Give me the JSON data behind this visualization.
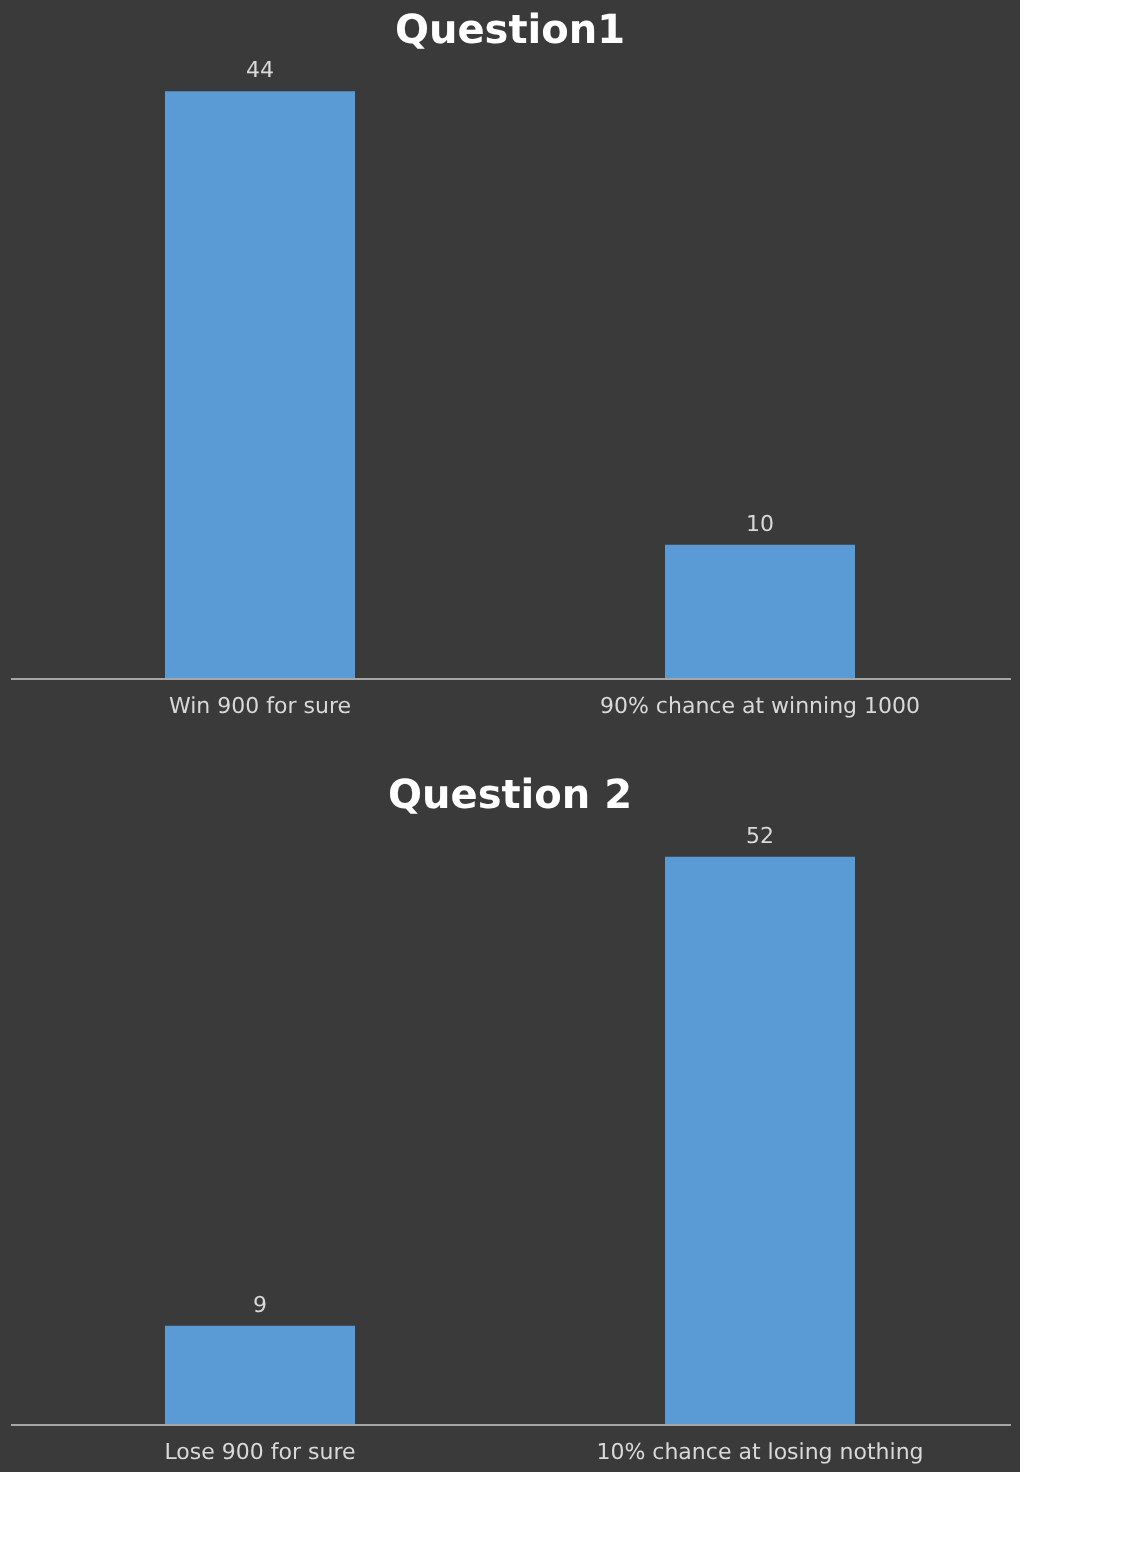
{
  "chart_data": [
    {
      "type": "bar",
      "title": "Question1",
      "categories": [
        "Win 900 for sure",
        "90% chance at winning 1000"
      ],
      "values": [
        44,
        10
      ],
      "color": "#5b9bd5",
      "data_labels": true
    },
    {
      "type": "bar",
      "title": "Question 2",
      "categories": [
        "Lose 900 for sure",
        "10% chance at losing nothing"
      ],
      "values": [
        9,
        52
      ],
      "color": "#5b9bd5",
      "data_labels": true
    }
  ]
}
